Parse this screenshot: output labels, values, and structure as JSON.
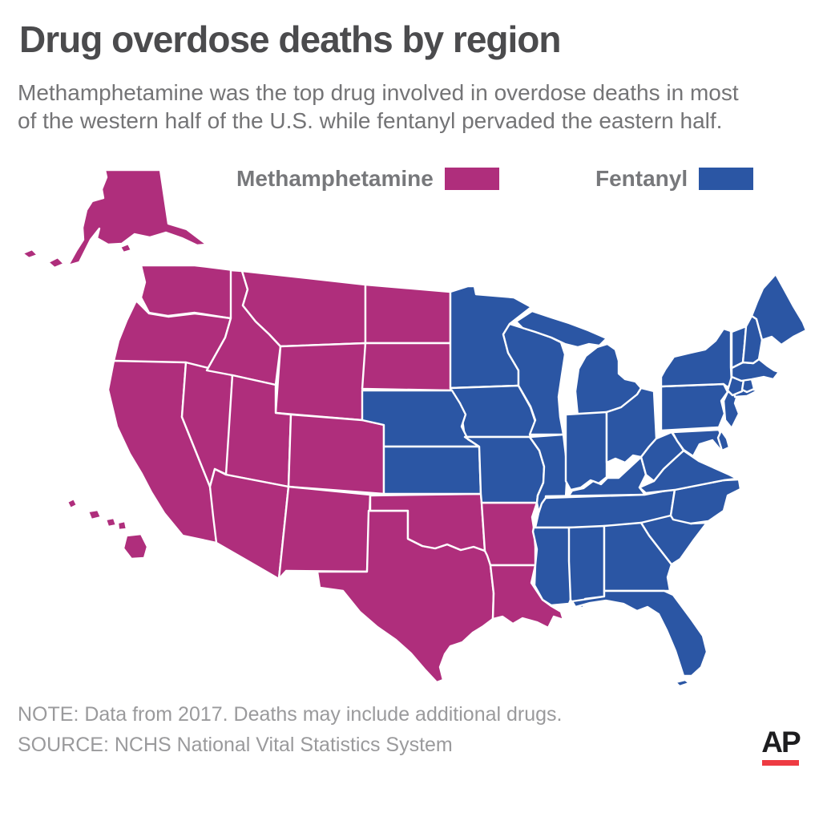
{
  "header": {
    "title": "Drug overdose deaths by region",
    "subtitle_line1": "Methamphetamine was the top drug involved in overdose deaths in most",
    "subtitle_line2": "of the western half of the U.S. while fentanyl pervaded the eastern half."
  },
  "legend": {
    "items": [
      {
        "label": "Methamphetamine",
        "color": "#AF2E7C",
        "category": "methamphetamine"
      },
      {
        "label": "Fentanyl",
        "color": "#2B56A4",
        "category": "fentanyl"
      }
    ]
  },
  "footer": {
    "note": "NOTE: Data from 2017. Deaths may include additional drugs.",
    "source": "SOURCE: NCHS National Vital Statistics System"
  },
  "logo": {
    "text": "AP",
    "text_color": "#1d1d1f",
    "bar_color": "#ee3b43"
  },
  "map": {
    "border_color": "#ffffff",
    "categories": {
      "methamphetamine": {
        "label": "Methamphetamine",
        "color": "#AF2E7C"
      },
      "fentanyl": {
        "label": "Fentanyl",
        "color": "#2B56A4"
      }
    },
    "states": {
      "AK": "methamphetamine",
      "HI": "methamphetamine",
      "WA": "methamphetamine",
      "OR": "methamphetamine",
      "CA": "methamphetamine",
      "NV": "methamphetamine",
      "ID": "methamphetamine",
      "MT": "methamphetamine",
      "WY": "methamphetamine",
      "UT": "methamphetamine",
      "CO": "methamphetamine",
      "AZ": "methamphetamine",
      "NM": "methamphetamine",
      "ND": "methamphetamine",
      "SD": "methamphetamine",
      "TX": "methamphetamine",
      "OK": "methamphetamine",
      "AR": "methamphetamine",
      "LA": "methamphetamine",
      "MN": "fentanyl",
      "IA": "fentanyl",
      "NE": "fentanyl",
      "KS": "fentanyl",
      "MO": "fentanyl",
      "WI": "fentanyl",
      "IL": "fentanyl",
      "MI": "fentanyl",
      "IN": "fentanyl",
      "OH": "fentanyl",
      "KY": "fentanyl",
      "TN": "fentanyl",
      "MS": "fentanyl",
      "AL": "fentanyl",
      "GA": "fentanyl",
      "FL": "fentanyl",
      "SC": "fentanyl",
      "NC": "fentanyl",
      "VA": "fentanyl",
      "WV": "fentanyl",
      "MD": "fentanyl",
      "DE": "fentanyl",
      "NJ": "fentanyl",
      "PA": "fentanyl",
      "NY": "fentanyl",
      "CT": "fentanyl",
      "RI": "fentanyl",
      "MA": "fentanyl",
      "VT": "fentanyl",
      "NH": "fentanyl",
      "ME": "fentanyl"
    }
  }
}
